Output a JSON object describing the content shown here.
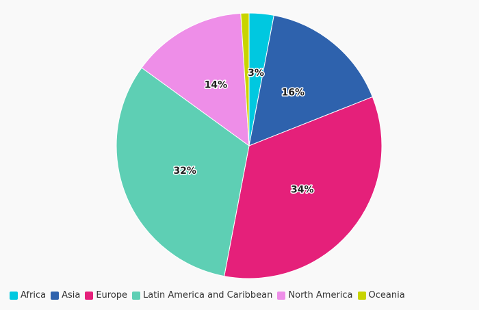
{
  "chart_data": {
    "type": "pie",
    "slices": [
      {
        "name": "Africa",
        "value": 3,
        "label": "3%",
        "color": "#00c8e0"
      },
      {
        "name": "Asia",
        "value": 16,
        "label": "16%",
        "color": "#2e62ad"
      },
      {
        "name": "Europe",
        "value": 34,
        "label": "34%",
        "color": "#e5207a"
      },
      {
        "name": "Latin America and Caribbean",
        "value": 32,
        "label": "32%",
        "color": "#5ecfb4"
      },
      {
        "name": "North America",
        "value": 14,
        "label": "14%",
        "color": "#ee8ee8"
      },
      {
        "name": "Oceania",
        "value": 1,
        "label": "",
        "color": "#c8d400"
      }
    ],
    "start_angle_deg": 0,
    "direction": "clockwise",
    "legend_position": "bottom-left"
  }
}
